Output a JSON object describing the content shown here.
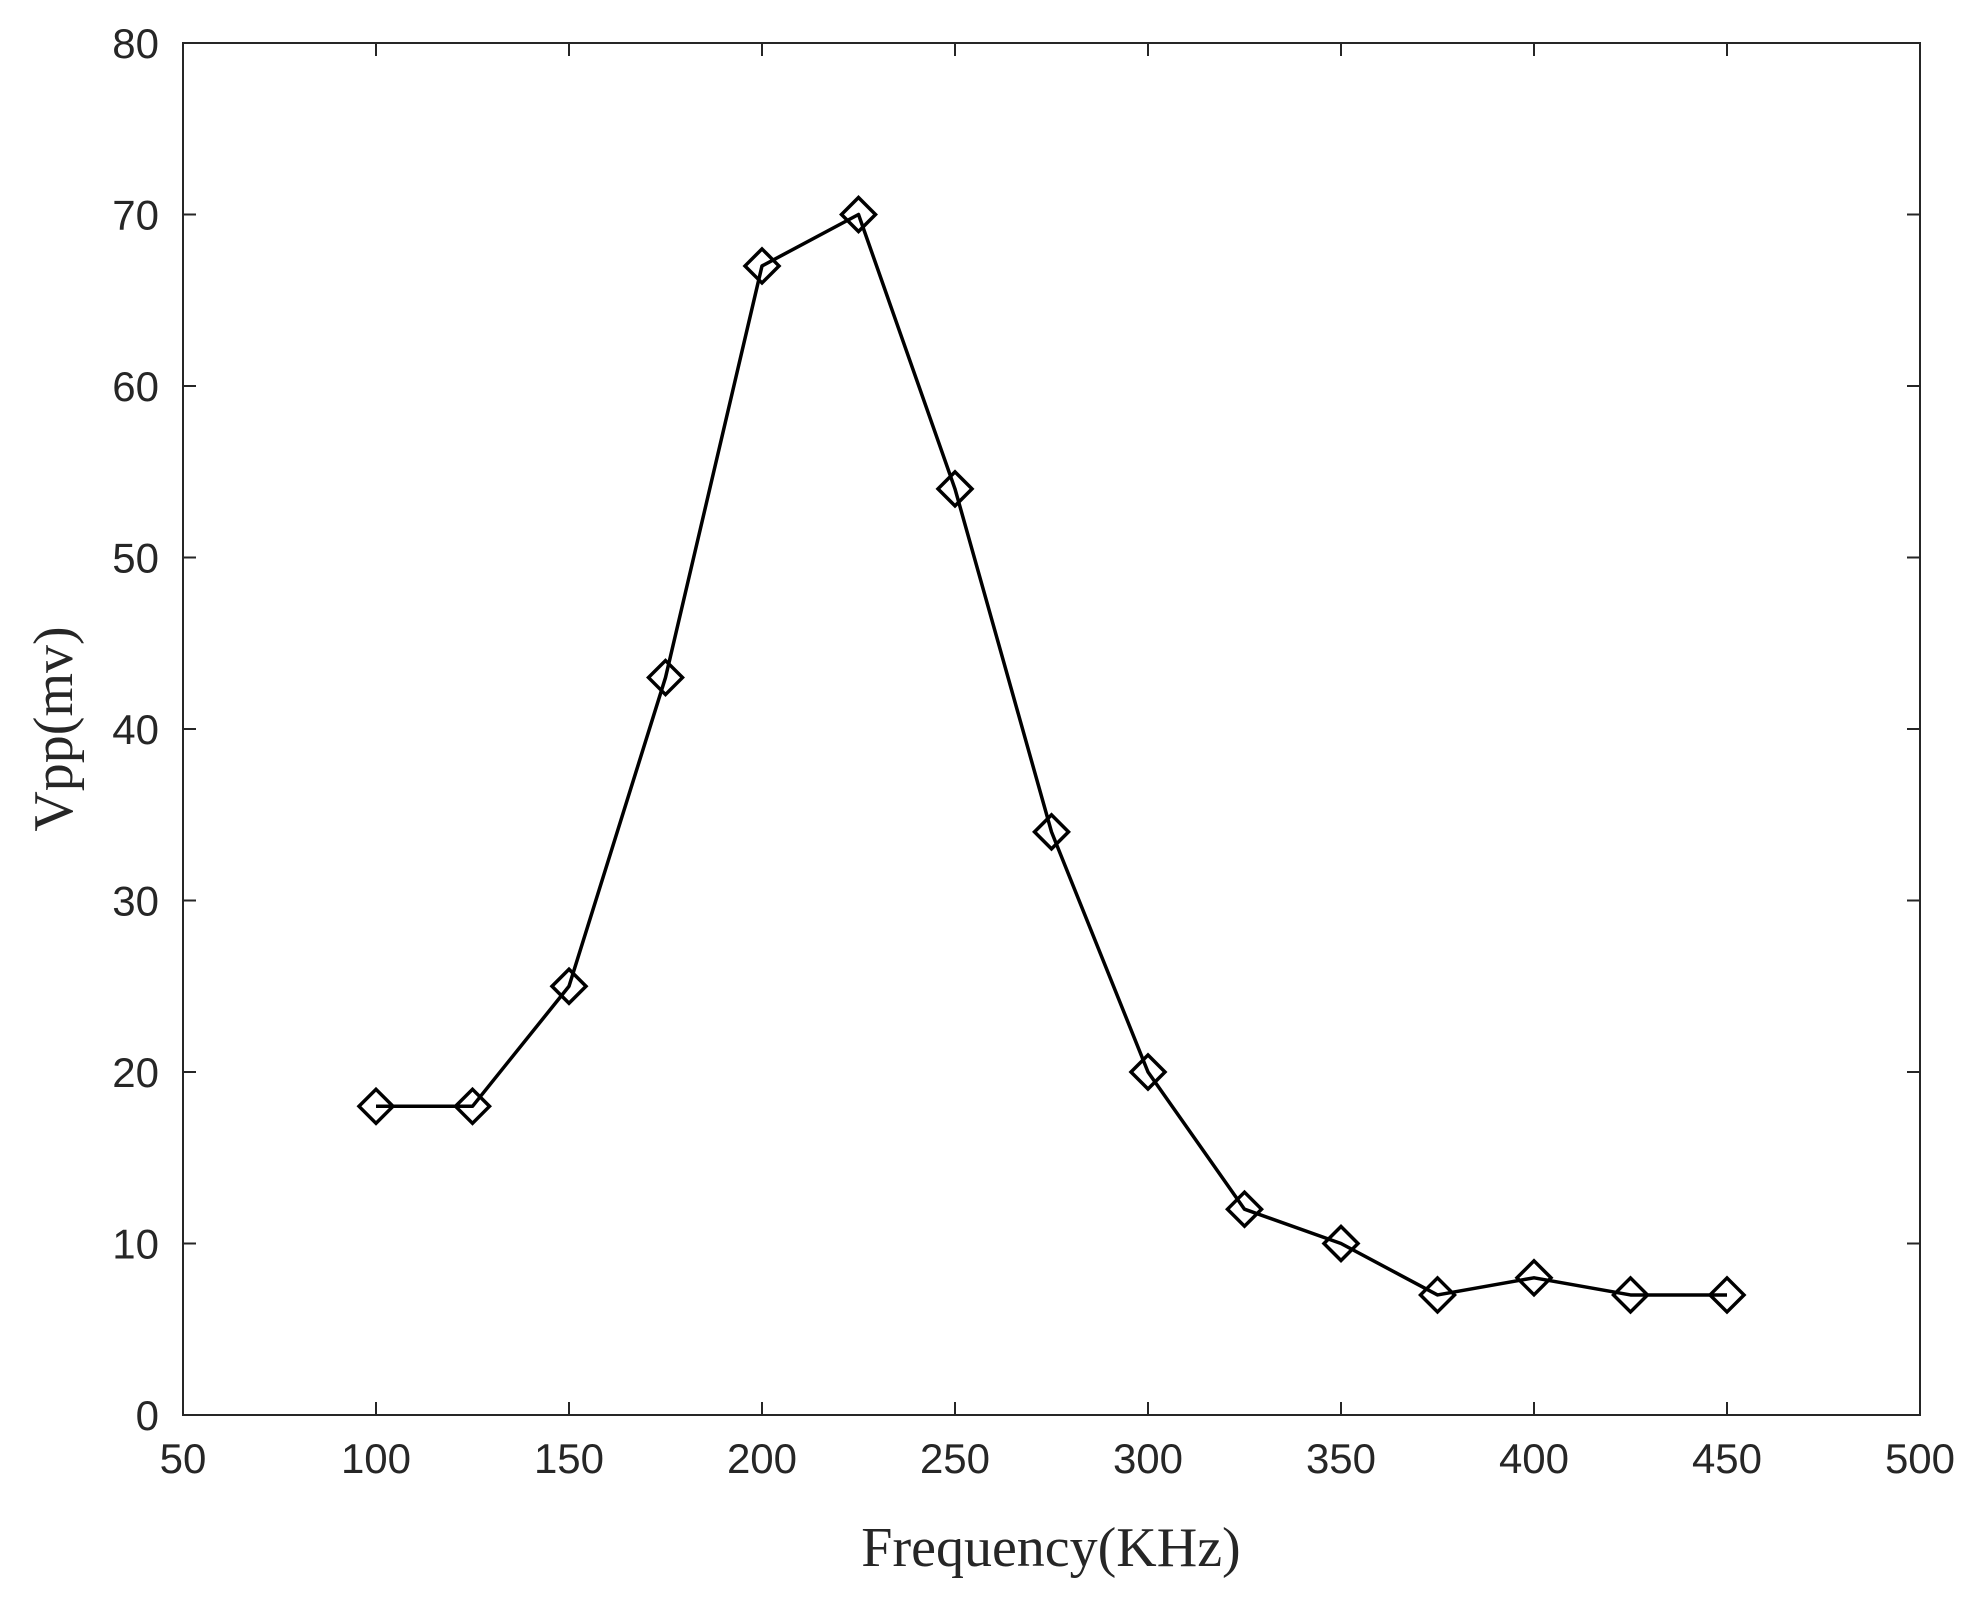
{
  "chart_data": {
    "type": "line",
    "title": "",
    "xlabel": "Frequency(KHz)",
    "ylabel": "Vpp(mv)",
    "xlim": [
      50,
      500
    ],
    "ylim": [
      0,
      80
    ],
    "xticks": [
      50,
      100,
      150,
      200,
      250,
      300,
      350,
      400,
      450,
      500
    ],
    "yticks": [
      0,
      10,
      20,
      30,
      40,
      50,
      60,
      70,
      80
    ],
    "grid": false,
    "legend": "none",
    "marker": "diamond",
    "line_color": "#000000",
    "series": [
      {
        "x": [
          100,
          125,
          150,
          175,
          200,
          225,
          250,
          275,
          300,
          325,
          350,
          375,
          400,
          425,
          450
        ],
        "y": [
          18,
          18,
          25,
          43,
          67,
          70,
          54,
          34,
          20,
          12,
          10,
          7,
          8,
          7,
          7
        ]
      }
    ]
  }
}
